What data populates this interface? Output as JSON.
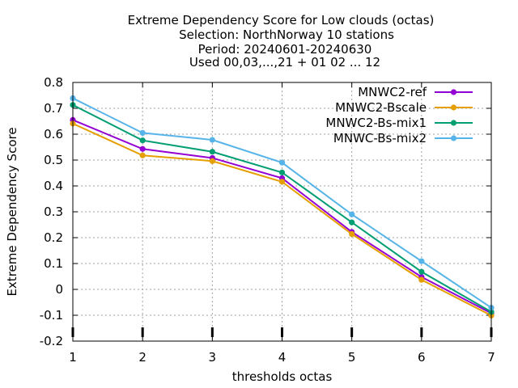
{
  "chart_data": {
    "type": "line",
    "title_lines": [
      "Extreme Dependency Score  for Low clouds (octas)",
      "Selection: NorthNorway      10 stations",
      "Period: 20240601-20240630",
      "Used 00,03,...,21 + 01 02 ... 12"
    ],
    "xlabel": "thresholds octas",
    "ylabel": "Extreme Dependency Score",
    "x": [
      1,
      2,
      3,
      4,
      5,
      6,
      7
    ],
    "xlim": [
      1,
      7
    ],
    "ylim": [
      -0.2,
      0.8
    ],
    "xticks": [
      "1",
      "2",
      "3",
      "4",
      "5",
      "6",
      "7"
    ],
    "yticks": [
      "-0.2",
      "-0.1",
      "0",
      "0.1",
      "0.2",
      "0.3",
      "0.4",
      "0.5",
      "0.6",
      "0.7",
      "0.8"
    ],
    "grid": true,
    "legend_position": "top-right",
    "series": [
      {
        "name": "MNWC2-ref",
        "color": "#9400d3",
        "values": [
          0.655,
          0.543,
          0.508,
          0.43,
          0.222,
          0.048,
          -0.092
        ]
      },
      {
        "name": "MNWC2-Bscale",
        "color": "#e69f00",
        "values": [
          0.641,
          0.518,
          0.496,
          0.416,
          0.214,
          0.037,
          -0.101
        ]
      },
      {
        "name": "MNWC2-Bs-mix1",
        "color": "#009e73",
        "values": [
          0.713,
          0.576,
          0.532,
          0.452,
          0.259,
          0.068,
          -0.087
        ]
      },
      {
        "name": "MNWC-Bs-mix2",
        "color": "#56b4e9",
        "values": [
          0.739,
          0.605,
          0.578,
          0.49,
          0.29,
          0.109,
          -0.071
        ]
      }
    ]
  }
}
